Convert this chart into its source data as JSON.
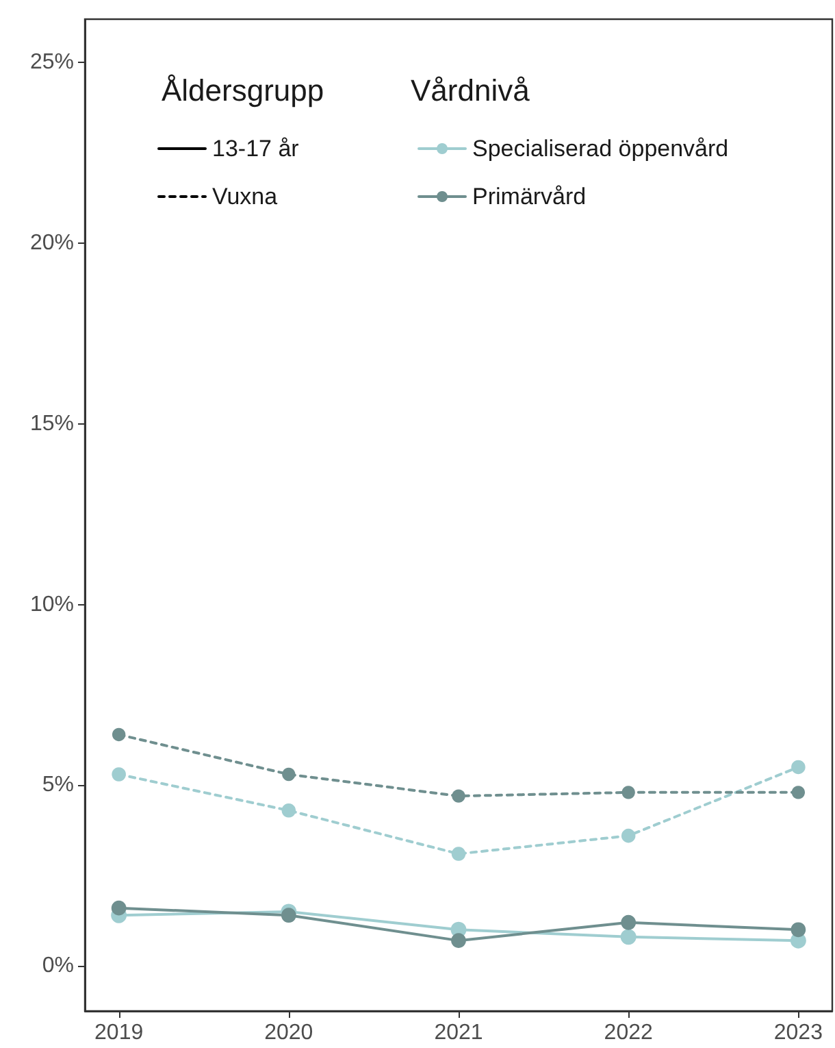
{
  "chart_data": {
    "type": "line",
    "x": [
      2019,
      2020,
      2021,
      2022,
      2023
    ],
    "xlim": [
      2018.8,
      2023.2
    ],
    "xticks": [
      2019,
      2020,
      2021,
      2022,
      2023
    ],
    "ylim": [
      -1.25,
      26.2
    ],
    "yticks": [
      {
        "value": 0,
        "label": "0%"
      },
      {
        "value": 5,
        "label": "5%"
      },
      {
        "value": 10,
        "label": "10%"
      },
      {
        "value": 15,
        "label": "15%"
      },
      {
        "value": 20,
        "label": "20%"
      },
      {
        "value": 25,
        "label": "25%"
      }
    ],
    "grid": false,
    "legend": "top left",
    "marker": "circle",
    "legend_title": "Vårdnivå",
    "annotations": [
      "Åldersgrupp"
    ],
    "series": [
      {
        "name": "Specialiserad öppenvård",
        "color": "#9fcdd0",
        "line_style": "solid",
        "values": [
          1.4,
          1.5,
          1.0,
          0.8,
          0.7
        ]
      },
      {
        "name": "Primärvård",
        "color": "#6f8f8f",
        "line_style": "solid",
        "values": [
          1.6,
          1.4,
          0.7,
          1.2,
          1.0
        ]
      },
      {
        "color": "#9fcdd0",
        "line_style": "dashed",
        "values": [
          5.3,
          4.3,
          3.1,
          3.6,
          5.5
        ]
      },
      {
        "color": "#6f8f8f",
        "line_style": "dashed",
        "values": [
          6.4,
          5.3,
          4.7,
          4.8,
          4.8
        ]
      },
      {
        "name": "13-17 år",
        "color": "#000000",
        "line_style": "solid",
        "marker": "none",
        "values": [
          null,
          null,
          null,
          null,
          null
        ]
      },
      {
        "name": "Vuxna",
        "color": "#000000",
        "line_style": "dashed",
        "marker": "none",
        "values": [
          null,
          null,
          null,
          null,
          null
        ]
      }
    ]
  }
}
